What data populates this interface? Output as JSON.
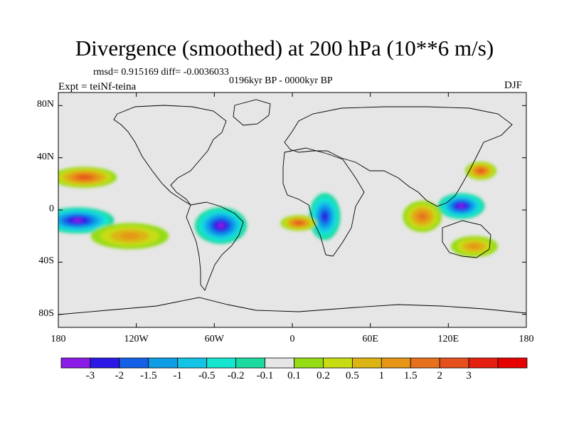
{
  "title": "Divergence (smoothed) at 200 hPa (10**6 m/s)",
  "stats": "rmsd= 0.915169 diff= -0.0036033",
  "period": "0196kyr BP - 0000kyr BP",
  "experiment": "Expt = teiNf-teina",
  "season": "DJF",
  "map": {
    "projection": "cylindrical equidistant",
    "lon_range": [
      -180,
      180
    ],
    "lat_range": [
      -90,
      90
    ],
    "lat_ticks": [
      {
        "value": 80,
        "label": "80N"
      },
      {
        "value": 40,
        "label": "40N"
      },
      {
        "value": 0,
        "label": "0"
      },
      {
        "value": -40,
        "label": "40S"
      },
      {
        "value": -80,
        "label": "80S"
      }
    ],
    "lon_ticks": [
      {
        "value": -180,
        "label": "180"
      },
      {
        "value": -120,
        "label": "120W"
      },
      {
        "value": -60,
        "label": "60W"
      },
      {
        "value": 0,
        "label": "0"
      },
      {
        "value": 60,
        "label": "60E"
      },
      {
        "value": 120,
        "label": "120E"
      },
      {
        "value": 180,
        "label": "180"
      }
    ],
    "features": [
      {
        "name": "central-pacific-convergence",
        "lon": -165,
        "lat": -8,
        "rlon": 28,
        "rlat": 10,
        "level": 0
      },
      {
        "name": "south-america-convergence",
        "lon": -55,
        "lat": -12,
        "rlon": 20,
        "rlat": 14,
        "level": 0
      },
      {
        "name": "equatorial-africa-convergence",
        "lon": 25,
        "lat": -5,
        "rlon": 12,
        "rlat": 18,
        "level": 1
      },
      {
        "name": "maritime-continent-convergence",
        "lon": 130,
        "lat": 3,
        "rlon": 18,
        "rlat": 10,
        "level": 0
      },
      {
        "name": "north-pacific-divergence",
        "lon": -160,
        "lat": 25,
        "rlon": 25,
        "rlat": 8,
        "level": 13
      },
      {
        "name": "south-pacific-divergence",
        "lon": -125,
        "lat": -20,
        "rlon": 30,
        "rlat": 10,
        "level": 11
      },
      {
        "name": "south-atlantic-divergence",
        "lon": 5,
        "lat": -10,
        "rlon": 14,
        "rlat": 6,
        "level": 13
      },
      {
        "name": "indian-ocean-divergence",
        "lon": 100,
        "lat": -5,
        "rlon": 15,
        "rlat": 12,
        "level": 12
      },
      {
        "name": "west-pacific-divergence",
        "lon": 145,
        "lat": 30,
        "rlon": 12,
        "rlat": 7,
        "level": 13
      },
      {
        "name": "australia-divergence",
        "lon": 140,
        "lat": -28,
        "rlon": 18,
        "rlat": 8,
        "level": 11
      }
    ]
  },
  "colorbar": {
    "colors": [
      "#8a1ce6",
      "#2a19e6",
      "#1460e6",
      "#0e9ee6",
      "#14c4e6",
      "#14e6d0",
      "#1cd9a0",
      "#e6e6e6",
      "#96dc14",
      "#c8dc14",
      "#dcb414",
      "#e69614",
      "#e6701c",
      "#e6501c",
      "#e62010",
      "#e60000"
    ],
    "labels": [
      "-3",
      "-2",
      "-1.5",
      "-1",
      "-0.5",
      "-0.2",
      "-0.1",
      "0.1",
      "0.2",
      "0.5",
      "1",
      "1.5",
      "2",
      "3"
    ]
  }
}
